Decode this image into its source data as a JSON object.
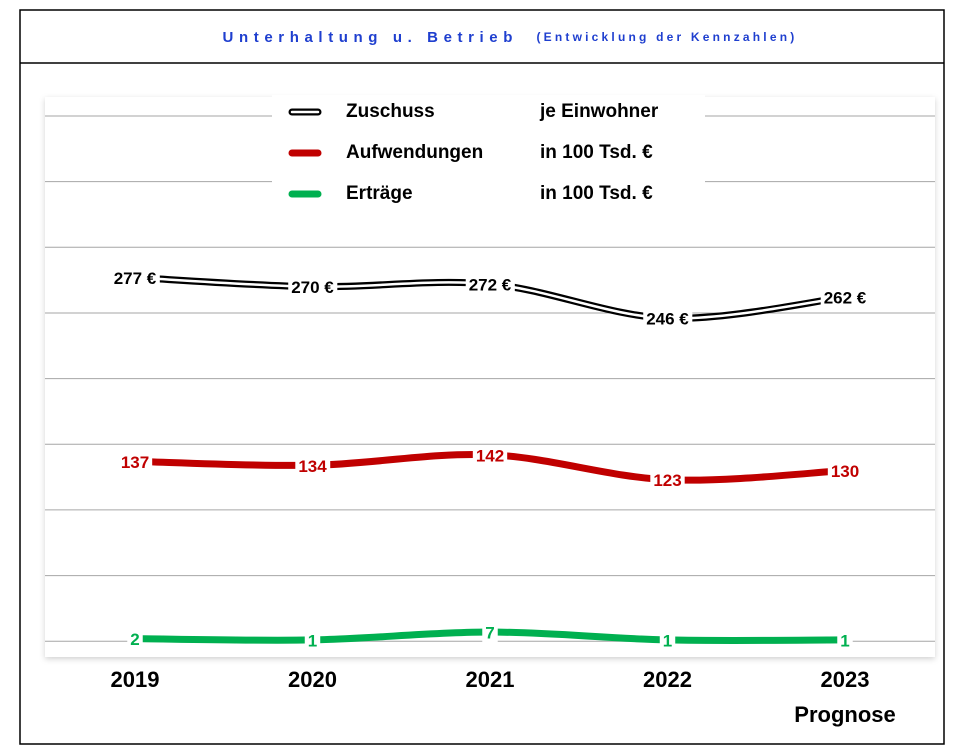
{
  "chart_data": {
    "type": "line",
    "title": "Unterhaltung u. Betrieb",
    "subtitle": "(Entwicklung der Kennzahlen)",
    "categories": [
      "2019",
      "2020",
      "2021",
      "2022",
      "2023"
    ],
    "x_annotation": "Prognose",
    "ylim": [
      -12,
      400
    ],
    "yticks": [
      0,
      50,
      100,
      150,
      200,
      250,
      300,
      350,
      400
    ],
    "grid": true,
    "series": [
      {
        "name": "Zuschuss",
        "unit": "je Einwohner",
        "color": "#000000",
        "style": "double",
        "values": [
          277,
          270,
          272,
          246,
          262
        ],
        "value_labels": [
          "277 €",
          "270 €",
          "272 €",
          "246 €",
          "262 €"
        ]
      },
      {
        "name": "Aufwendungen",
        "unit": "in 100 Tsd. €",
        "color": "#c00000",
        "values": [
          137,
          134,
          142,
          123,
          130
        ]
      },
      {
        "name": "Erträge",
        "unit": "in 100 Tsd. €",
        "color": "#00b050",
        "values": [
          2,
          1,
          7,
          1,
          1
        ]
      }
    ]
  }
}
